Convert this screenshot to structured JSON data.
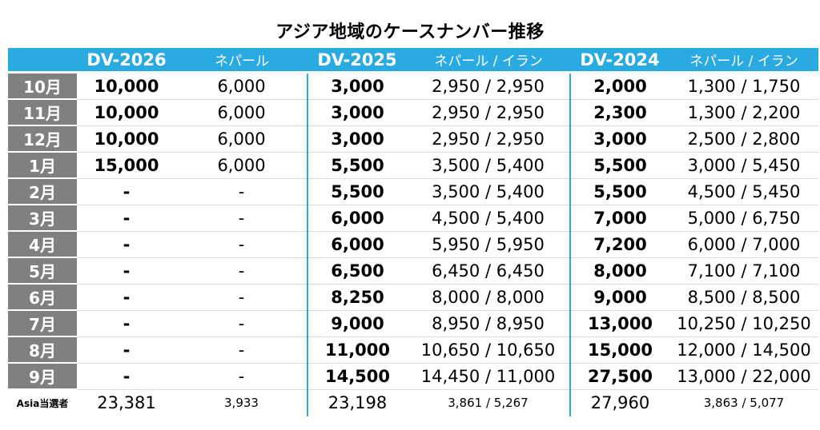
{
  "title": "アジア地域のケースナンバー推移",
  "header": {
    "dv2026": "DV-2026",
    "dv2026_sub": "ネパール",
    "dv2025": "DV-2025",
    "dv2025_sub": "ネパール / イラン",
    "dv2024": "DV-2024",
    "dv2024_sub": "ネパール / イラン"
  },
  "rows": [
    {
      "month": "10月",
      "a": "10,000",
      "b": "6,000",
      "c": "3,000",
      "d": "2,950 / 2,950",
      "e": "2,000",
      "f": "1,300 / 1,750"
    },
    {
      "month": "11月",
      "a": "10,000",
      "b": "6,000",
      "c": "3,000",
      "d": "2,950 / 2,950",
      "e": "2,300",
      "f": "1,300 / 2,200"
    },
    {
      "month": "12月",
      "a": "10,000",
      "b": "6,000",
      "c": "3,000",
      "d": "2,950 / 2,950",
      "e": "3,000",
      "f": "2,500 / 2,800"
    },
    {
      "month": "1月",
      "a": "15,000",
      "b": "6,000",
      "c": "5,500",
      "d": "3,500 / 5,400",
      "e": "5,500",
      "f": "3,000 / 5,450"
    },
    {
      "month": "2月",
      "a": "-",
      "b": "-",
      "c": "5,500",
      "d": "3,500 / 5,400",
      "e": "5,500",
      "f": "4,500 / 5,450"
    },
    {
      "month": "3月",
      "a": "-",
      "b": "-",
      "c": "6,000",
      "d": "4,500 / 5,400",
      "e": "7,000",
      "f": "5,000 / 6,750"
    },
    {
      "month": "4月",
      "a": "-",
      "b": "-",
      "c": "6,000",
      "d": "5,950 / 5,950",
      "e": "7,200",
      "f": "6,000 / 7,000"
    },
    {
      "month": "5月",
      "a": "-",
      "b": "-",
      "c": "6,500",
      "d": "6,450 / 6,450",
      "e": "8,000",
      "f": "7,100 / 7,100"
    },
    {
      "month": "6月",
      "a": "-",
      "b": "-",
      "c": "8,250",
      "d": "8,000 / 8,000",
      "e": "9,000",
      "f": "8,500 / 8,500"
    },
    {
      "month": "7月",
      "a": "-",
      "b": "-",
      "c": "9,000",
      "d": "8,950 / 8,950",
      "e": "13,000",
      "f": "10,250 / 10,250"
    },
    {
      "month": "8月",
      "a": "-",
      "b": "-",
      "c": "11,000",
      "d": "10,650 / 10,650",
      "e": "15,000",
      "f": "12,000 / 14,500"
    },
    {
      "month": "9月",
      "a": "-",
      "b": "-",
      "c": "14,500",
      "d": "14,450 / 11,000",
      "e": "27,500",
      "f": "13,000 / 22,000"
    }
  ],
  "totals": {
    "label": "Asia当選者",
    "a": "23,381",
    "b": "3,933",
    "c": "23,198",
    "d": "3,861 / 5,267",
    "e": "27,960",
    "f": "3,863 / 5,077"
  }
}
